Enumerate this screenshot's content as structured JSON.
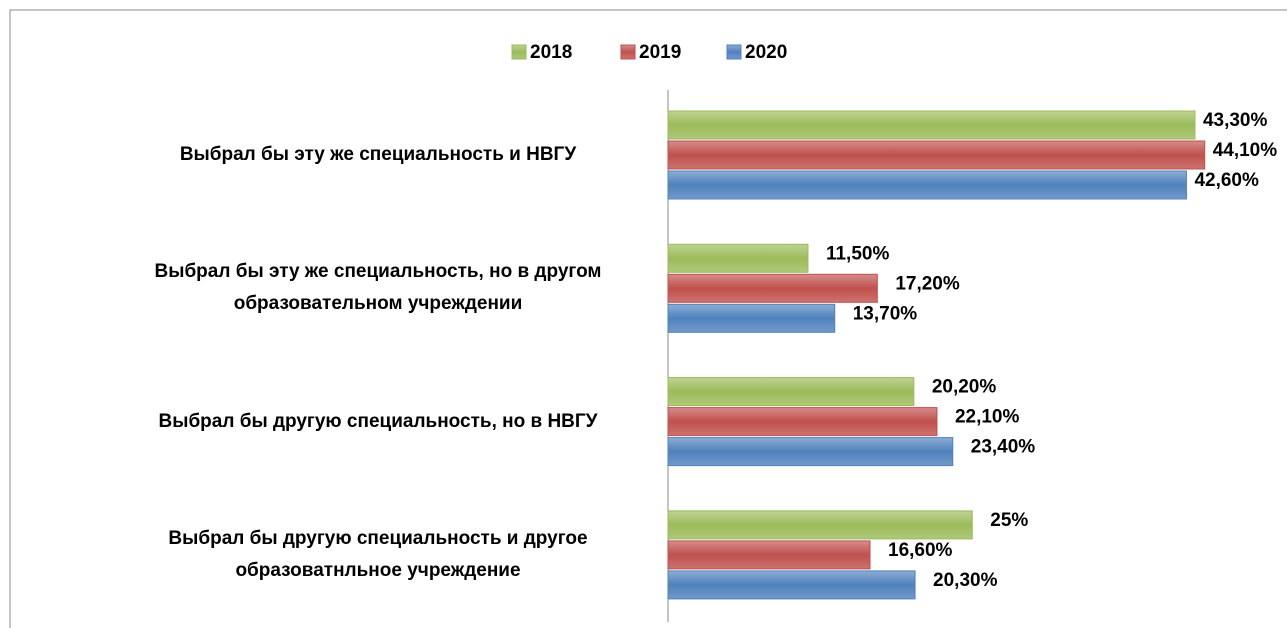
{
  "chart_data": {
    "type": "bar",
    "orientation": "horizontal",
    "categories": [
      "Выбрал бы эту же специальность и НВГУ",
      "Выбрал бы эту же специальность, но в другом\nобразовательном учреждении",
      "Выбрал бы другую специальность, но в НВГУ",
      "Выбрал бы другую специальность и другое\nобразоватнльное учреждение"
    ],
    "series": [
      {
        "name": "2018",
        "color": "#9bbb59",
        "values": [
          43.3,
          11.5,
          20.2,
          25
        ],
        "value_labels": [
          "43,30%",
          "11,50%",
          "20,20%",
          "25%"
        ]
      },
      {
        "name": "2019",
        "color": "#c0504d",
        "values": [
          44.1,
          17.2,
          22.1,
          16.6
        ],
        "value_labels": [
          "44,10%",
          "17,20%",
          "22,10%",
          "16,60%"
        ]
      },
      {
        "name": "2020",
        "color": "#4f81bd",
        "values": [
          42.6,
          13.7,
          23.4,
          20.3
        ],
        "value_labels": [
          "42,60%",
          "13,70%",
          "23,40%",
          "20,30%"
        ]
      }
    ],
    "legend": "top"
  }
}
